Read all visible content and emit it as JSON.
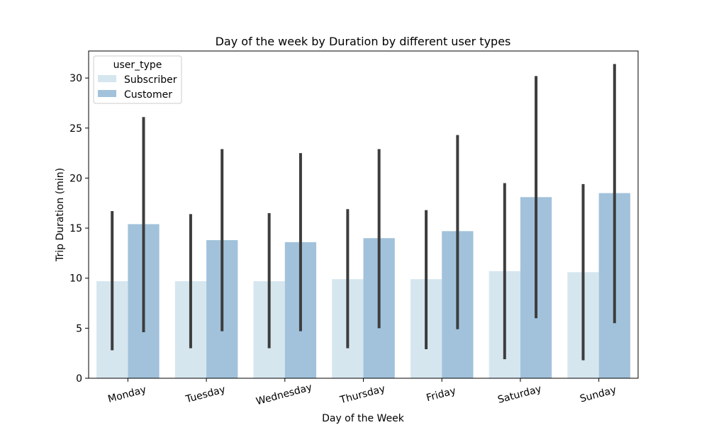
{
  "chart_data": {
    "type": "bar",
    "title": "Day of the week by Duration by different user types",
    "xlabel": "Day of the Week",
    "ylabel": "Trip Duration (min)",
    "categories": [
      "Monday",
      "Tuesday",
      "Wednesday",
      "Thursday",
      "Friday",
      "Saturday",
      "Sunday"
    ],
    "ylim": [
      0,
      32.7
    ],
    "yticks": [
      0,
      5,
      10,
      15,
      20,
      25,
      30
    ],
    "grid": false,
    "legend": {
      "title": "user_type",
      "position": "top-left"
    },
    "error_bar_color": "#3d3d3d",
    "series": [
      {
        "name": "Subscriber",
        "color": "#d6e6ef",
        "values": [
          9.7,
          9.7,
          9.7,
          9.9,
          9.9,
          10.7,
          10.6
        ],
        "error_low": [
          2.8,
          3.0,
          3.0,
          3.0,
          2.9,
          1.9,
          1.8
        ],
        "error_high": [
          16.7,
          16.4,
          16.5,
          16.9,
          16.8,
          19.5,
          19.4
        ]
      },
      {
        "name": "Customer",
        "color": "#a2c2db",
        "values": [
          15.4,
          13.8,
          13.6,
          14.0,
          14.7,
          18.1,
          18.5
        ],
        "error_low": [
          4.6,
          4.7,
          4.7,
          5.0,
          4.9,
          6.0,
          5.5
        ],
        "error_high": [
          26.1,
          22.9,
          22.5,
          22.9,
          24.3,
          30.2,
          31.4
        ]
      }
    ]
  }
}
